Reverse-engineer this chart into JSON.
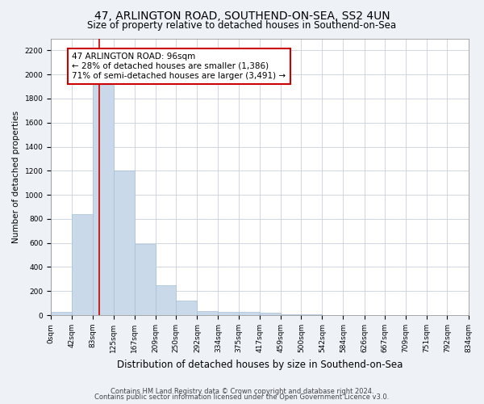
{
  "title1": "47, ARLINGTON ROAD, SOUTHEND-ON-SEA, SS2 4UN",
  "title2": "Size of property relative to detached houses in Southend-on-Sea",
  "xlabel": "Distribution of detached houses by size in Southend-on-Sea",
  "ylabel": "Number of detached properties",
  "footnote1": "Contains HM Land Registry data © Crown copyright and database right 2024.",
  "footnote2": "Contains public sector information licensed under the Open Government Licence v3.0.",
  "bin_edges": [
    0,
    42,
    83,
    125,
    167,
    209,
    250,
    292,
    334,
    375,
    417,
    459,
    500,
    542,
    584,
    626,
    667,
    709,
    751,
    792,
    834
  ],
  "bar_heights": [
    25,
    840,
    2000,
    1200,
    590,
    250,
    120,
    35,
    30,
    25,
    20,
    10,
    5,
    3,
    2,
    1,
    1,
    0,
    0,
    0
  ],
  "bar_color": "#c9d9ea",
  "bar_edgecolor": "#a8c0d8",
  "red_line_x": 96,
  "red_line_color": "#cc0000",
  "annotation_line1": "47 ARLINGTON ROAD: 96sqm",
  "annotation_line2": "← 28% of detached houses are smaller (1,386)",
  "annotation_line3": "71% of semi-detached houses are larger (3,491) →",
  "annotation_box_edgecolor": "#cc0000",
  "annotation_fontsize": 7.5,
  "ylim": [
    0,
    2300
  ],
  "yticks": [
    0,
    200,
    400,
    600,
    800,
    1000,
    1200,
    1400,
    1600,
    1800,
    2000,
    2200
  ],
  "tick_labels": [
    "0sqm",
    "42sqm",
    "83sqm",
    "125sqm",
    "167sqm",
    "209sqm",
    "250sqm",
    "292sqm",
    "334sqm",
    "375sqm",
    "417sqm",
    "459sqm",
    "500sqm",
    "542sqm",
    "584sqm",
    "626sqm",
    "667sqm",
    "709sqm",
    "751sqm",
    "792sqm",
    "834sqm"
  ],
  "bg_color": "#eef2f7",
  "plot_bg_color": "#ffffff",
  "grid_color": "#c8d0dc",
  "title1_fontsize": 10,
  "title2_fontsize": 8.5,
  "xlabel_fontsize": 8.5,
  "ylabel_fontsize": 7.5,
  "footnote_fontsize": 6.0,
  "tick_fontsize": 6.5
}
